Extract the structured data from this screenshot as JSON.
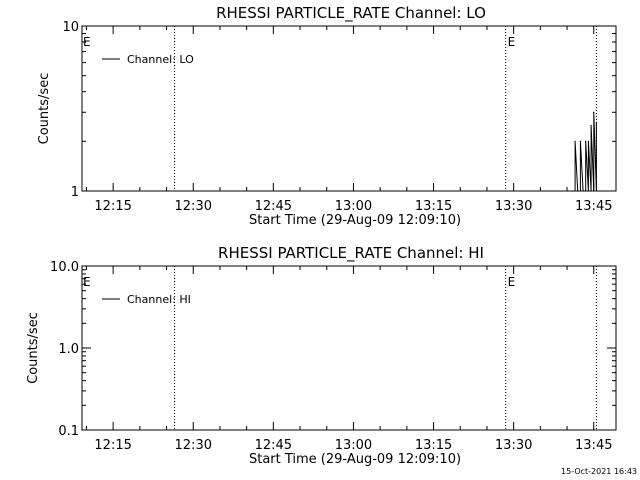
{
  "chart_data": [
    {
      "type": "line",
      "title": "RHESSI PARTICLE_RATE Channel: LO",
      "xlabel": "Start Time (29-Aug-09 12:09:10)",
      "ylabel": "Counts/sec",
      "yscale": "log",
      "ylim": [
        1,
        10
      ],
      "ytick_labels": [
        "1",
        "10"
      ],
      "ytick_values": [
        1,
        10
      ],
      "xrange_minutes": [
        "12:09:10",
        "13:49:10"
      ],
      "xtick_labels": [
        "12:15",
        "12:30",
        "12:45",
        "13:00",
        "13:15",
        "13:30",
        "13:45"
      ],
      "xtick_values": [
        "12:15",
        "12:30",
        "12:45",
        "13:00",
        "13:15",
        "13:30",
        "13:45"
      ],
      "event_lines": [
        {
          "x": "12:26:30",
          "label": ""
        },
        {
          "x": "13:28:30",
          "label": "E"
        },
        {
          "x": "13:45:30",
          "label": ""
        }
      ],
      "corner_marker": "E",
      "legend": {
        "position": "top-left",
        "entries": [
          "Channel: LO"
        ]
      },
      "series": [
        {
          "name": "Channel: LO",
          "x": [
            "13:41:00",
            "13:41:30",
            "13:42:00",
            "13:42:30",
            "13:43:00",
            "13:43:30",
            "13:44:00",
            "13:44:30",
            "13:45:00",
            "13:45:30"
          ],
          "values": [
            1.0,
            2.0,
            1.0,
            2.0,
            1.0,
            2.0,
            2.0,
            2.5,
            3.0,
            2.6
          ]
        }
      ]
    },
    {
      "type": "line",
      "title": "RHESSI PARTICLE_RATE Channel: HI",
      "xlabel": "Start Time (29-Aug-09 12:09:10)",
      "ylabel": "Counts/sec",
      "yscale": "log",
      "ylim": [
        0.1,
        10
      ],
      "ytick_labels": [
        "0.1",
        "1.0",
        "10.0"
      ],
      "ytick_values": [
        0.1,
        1,
        10
      ],
      "xrange_minutes": [
        "12:09:10",
        "13:49:10"
      ],
      "xtick_labels": [
        "12:15",
        "12:30",
        "12:45",
        "13:00",
        "13:15",
        "13:30",
        "13:45"
      ],
      "xtick_values": [
        "12:15",
        "12:30",
        "12:45",
        "13:00",
        "13:15",
        "13:30",
        "13:45"
      ],
      "event_lines": [
        {
          "x": "12:26:30",
          "label": ""
        },
        {
          "x": "13:28:30",
          "label": "E"
        },
        {
          "x": "13:45:30",
          "label": ""
        }
      ],
      "corner_marker": "E",
      "legend": {
        "position": "top-left",
        "entries": [
          "Channel: HI"
        ]
      },
      "series": [
        {
          "name": "Channel: HI",
          "x": [],
          "values": []
        }
      ]
    }
  ],
  "footer": {
    "timestamp": "15-Oct-2021 16:43"
  }
}
